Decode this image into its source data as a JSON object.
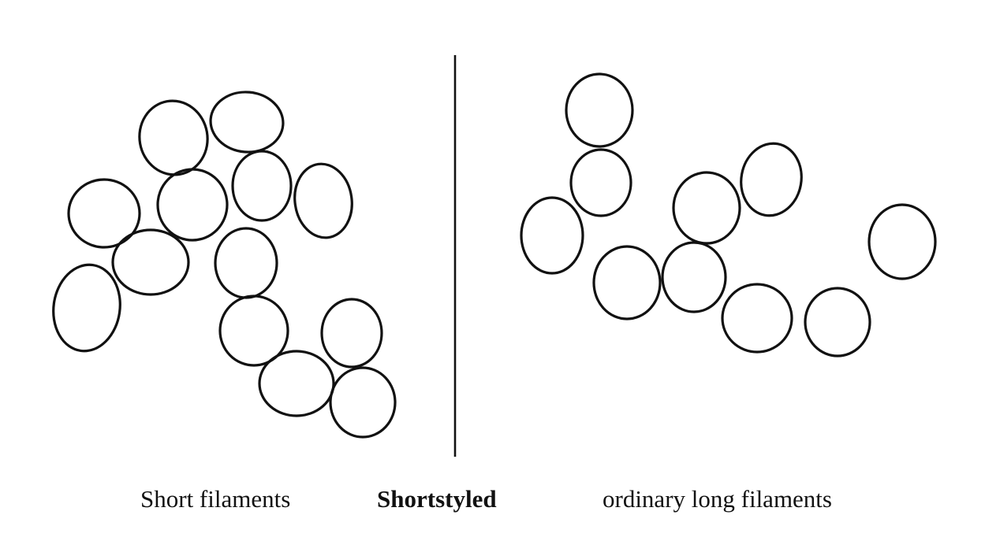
{
  "labels": {
    "left": "Short filaments",
    "center": "Shortstyled",
    "right": "ordinary long filaments"
  },
  "colors": {
    "stroke": "#111111",
    "background": "#ffffff"
  }
}
